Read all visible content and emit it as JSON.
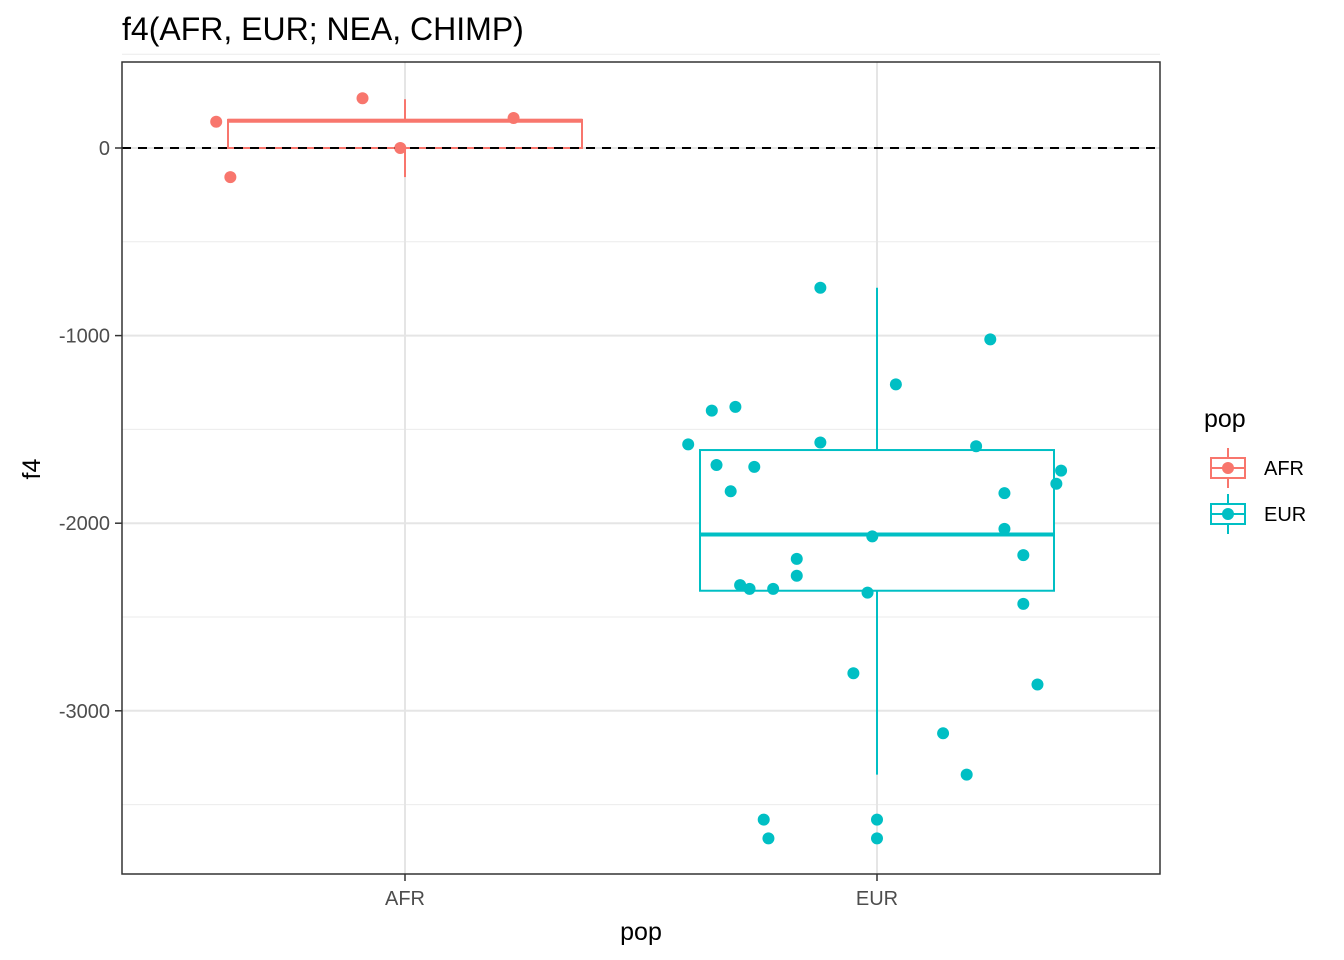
{
  "chart_data": {
    "type": "box",
    "title": "f4(AFR, EUR; NEA, CHIMP)",
    "xlabel": "pop",
    "ylabel": "f4",
    "categories": [
      "AFR",
      "EUR"
    ],
    "ylim": [
      -3880,
      460
    ],
    "yticks": [
      0,
      -1000,
      -2000,
      -3000
    ],
    "ytick_labels": [
      "0",
      "-1000",
      "-2000",
      "-3000"
    ],
    "reference_line": {
      "y": 0,
      "style": "dashed",
      "color": "#000000"
    },
    "grid": true,
    "legend": {
      "title": "pop",
      "position": "right",
      "entries": [
        "AFR",
        "EUR"
      ]
    },
    "colors": {
      "AFR": "#F8766D",
      "EUR": "#00BFC4"
    },
    "series": [
      {
        "name": "AFR",
        "box": {
          "min": -155,
          "q1": 0,
          "median": 145,
          "q3": 150,
          "max": 260
        },
        "points": [
          {
            "jitter": -0.4,
            "y": 140
          },
          {
            "jitter": -0.37,
            "y": -155
          },
          {
            "jitter": -0.09,
            "y": 265
          },
          {
            "jitter": -0.01,
            "y": 0
          },
          {
            "jitter": 0.23,
            "y": 160
          }
        ]
      },
      {
        "name": "EUR",
        "box": {
          "min": -3340,
          "q1": -2360,
          "median": -2060,
          "q3": -1610,
          "max": -745
        },
        "points": [
          {
            "jitter": -0.12,
            "y": -745
          },
          {
            "jitter": 0.24,
            "y": -1020
          },
          {
            "jitter": 0.04,
            "y": -1260
          },
          {
            "jitter": -0.35,
            "y": -1400
          },
          {
            "jitter": -0.3,
            "y": -1380
          },
          {
            "jitter": -0.4,
            "y": -1580
          },
          {
            "jitter": -0.12,
            "y": -1570
          },
          {
            "jitter": 0.21,
            "y": -1590
          },
          {
            "jitter": -0.34,
            "y": -1690
          },
          {
            "jitter": -0.26,
            "y": -1700
          },
          {
            "jitter": 0.39,
            "y": -1720
          },
          {
            "jitter": 0.38,
            "y": -1790
          },
          {
            "jitter": -0.31,
            "y": -1830
          },
          {
            "jitter": 0.27,
            "y": -1840
          },
          {
            "jitter": 0.27,
            "y": -2030
          },
          {
            "jitter": -0.01,
            "y": -2070
          },
          {
            "jitter": -0.17,
            "y": -2190
          },
          {
            "jitter": 0.31,
            "y": -2170
          },
          {
            "jitter": -0.17,
            "y": -2280
          },
          {
            "jitter": -0.29,
            "y": -2330
          },
          {
            "jitter": -0.27,
            "y": -2350
          },
          {
            "jitter": -0.22,
            "y": -2350
          },
          {
            "jitter": -0.02,
            "y": -2370
          },
          {
            "jitter": 0.31,
            "y": -2430
          },
          {
            "jitter": -0.05,
            "y": -2800
          },
          {
            "jitter": 0.34,
            "y": -2860
          },
          {
            "jitter": 0.14,
            "y": -3120
          },
          {
            "jitter": 0.19,
            "y": -3340
          },
          {
            "jitter": -0.24,
            "y": -3580
          },
          {
            "jitter": 0.0,
            "y": -3580
          },
          {
            "jitter": -0.23,
            "y": -3680
          },
          {
            "jitter": 0.0,
            "y": -3680
          }
        ]
      }
    ]
  }
}
